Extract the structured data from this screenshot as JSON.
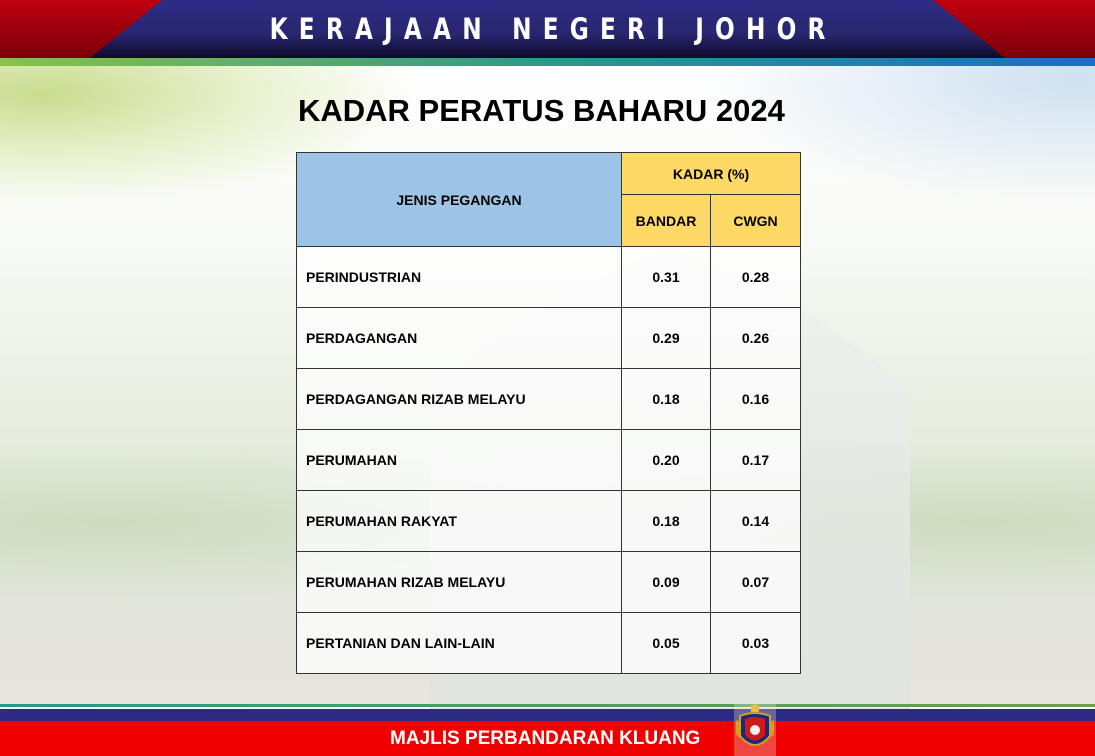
{
  "header": {
    "title": "KERAJAAN NEGERI JOHOR"
  },
  "page_title": "KADAR PERATUS BAHARU 2024",
  "table": {
    "col_type": "JENIS PEGANGAN",
    "col_rate": "KADAR (%)",
    "col_bandar": "BANDAR",
    "col_cwgn": "CWGN",
    "rows": [
      {
        "name": "PERINDUSTRIAN",
        "bandar": "0.31",
        "cwgn": "0.28"
      },
      {
        "name": "PERDAGANGAN",
        "bandar": "0.29",
        "cwgn": "0.26"
      },
      {
        "name": "PERDAGANGAN RIZAB MELAYU",
        "bandar": "0.18",
        "cwgn": "0.16"
      },
      {
        "name": "PERUMAHAN",
        "bandar": "0.20",
        "cwgn": "0.17"
      },
      {
        "name": "PERUMAHAN RAKYAT",
        "bandar": "0.18",
        "cwgn": "0.14"
      },
      {
        "name": "PERUMAHAN RIZAB MELAYU",
        "bandar": "0.09",
        "cwgn": "0.07"
      },
      {
        "name": "PERTANIAN DAN LAIN-LAIN",
        "bandar": "0.05",
        "cwgn": "0.03"
      }
    ]
  },
  "footer": {
    "title": "MAJLIS PERBANDARAN KLUANG",
    "logo": "majlis-perbandaran-kluang-crest"
  },
  "colors": {
    "header_navy": "#2e2d86",
    "header_red": "#c00010",
    "footer_red": "#f00000",
    "type_header": "#9dc3e6",
    "rate_header": "#ffd966"
  }
}
